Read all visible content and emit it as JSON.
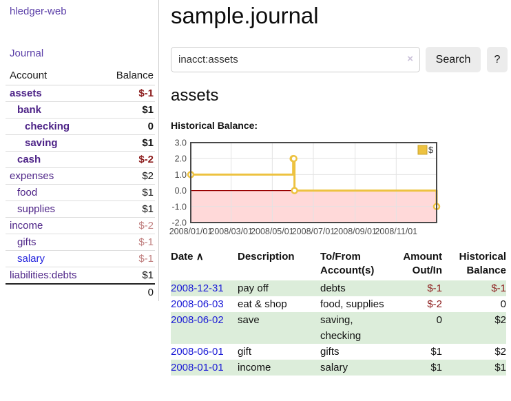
{
  "app": {
    "brand": "hledger-web",
    "nav": {
      "journal": "Journal"
    }
  },
  "sidebar": {
    "table": {
      "headers": {
        "account": "Account",
        "balance": "Balance"
      },
      "rows": [
        {
          "account": "assets",
          "balance": "$-1",
          "level": 0,
          "bold": true
        },
        {
          "account": "bank",
          "balance": "$1",
          "level": 1,
          "bold": true
        },
        {
          "account": "checking",
          "balance": "0",
          "level": 2,
          "bold": true
        },
        {
          "account": "saving",
          "balance": "$1",
          "level": 2,
          "bold": true
        },
        {
          "account": "cash",
          "balance": "$-2",
          "level": 1,
          "bold": true
        },
        {
          "account": "expenses",
          "balance": "$2",
          "level": 0,
          "bold": false
        },
        {
          "account": "food",
          "balance": "$1",
          "level": 1,
          "bold": false
        },
        {
          "account": "supplies",
          "balance": "$1",
          "level": 1,
          "bold": false
        },
        {
          "account": "income",
          "balance": "$-2",
          "level": 0,
          "bold": false
        },
        {
          "account": "gifts",
          "balance": "$-1",
          "level": 1,
          "bold": false
        },
        {
          "account": "salary",
          "balance": "$-1",
          "level": 1,
          "bold": false,
          "fresh": true
        },
        {
          "account": "liabilities:debts",
          "balance": "$1",
          "level": 0,
          "bold": false
        }
      ],
      "total": "0"
    }
  },
  "main": {
    "title": "sample.journal",
    "search": {
      "value": "inacct:assets",
      "clear_icon": "×",
      "button": "Search",
      "help": "?"
    },
    "account_heading": "assets",
    "chart_heading": "Historical Balance:"
  },
  "chart_data": {
    "type": "line",
    "subtype": "step-with-markers",
    "title": "Historical Balance:",
    "legend": {
      "position": "top-right"
    },
    "series": [
      {
        "name": "$",
        "points": [
          [
            "2008-01-01",
            1
          ],
          [
            "2008-06-01",
            2
          ],
          [
            "2008-06-02",
            2
          ],
          [
            "2008-06-03",
            0
          ],
          [
            "2008-12-31",
            -1
          ]
        ]
      }
    ],
    "x_range": [
      "2008-01-01",
      "2008-12-31"
    ],
    "ylim": [
      -2.0,
      3.0
    ],
    "yticks": [
      3.0,
      2.0,
      1.0,
      0.0,
      -1.0,
      -2.0
    ],
    "xticks": [
      {
        "date": "2008-01-01",
        "label": "2008/01/01"
      },
      {
        "date": "2008-03-01",
        "label": "2008/03/01"
      },
      {
        "date": "2008-05-01",
        "label": "2008/05/01"
      },
      {
        "date": "2008-07-01",
        "label": "2008/07/01"
      },
      {
        "date": "2008-09-01",
        "label": "2008/09/01"
      },
      {
        "date": "2008-11-01",
        "label": "2008/11/01"
      }
    ],
    "grid": true,
    "colors": {
      "line": "#EDC240",
      "legend_swatch_border": "#c9a32d",
      "negative_zone_fill": "#ffd9d9",
      "zero_line": "#990000",
      "plot_border": "#484848",
      "gridline": "#e3e3e3",
      "tick_text": "#4a4a4a"
    }
  },
  "register": {
    "sort_icon": "∧",
    "headers": [
      {
        "l1": "Date"
      },
      {
        "l1": "Description"
      },
      {
        "l1": "To/From",
        "l2": "Account(s)"
      },
      {
        "l1": "Amount",
        "l2": "Out/In"
      },
      {
        "l1": "Historical",
        "l2": "Balance"
      }
    ],
    "rows": [
      {
        "date": "2008-12-31",
        "description": "pay off",
        "to_from": "debts",
        "amount": "$-1",
        "balance": "$-1"
      },
      {
        "date": "2008-06-03",
        "description": "eat & shop",
        "to_from": "food, supplies",
        "amount": "$-2",
        "balance": "0"
      },
      {
        "date": "2008-06-02",
        "description": "save",
        "to_from": "saving, checking",
        "amount": "0",
        "balance": "$2"
      },
      {
        "date": "2008-06-01",
        "description": "gift",
        "to_from": "gifts",
        "amount": "$1",
        "balance": "$2"
      },
      {
        "date": "2008-01-01",
        "description": "income",
        "to_from": "salary",
        "amount": "$1",
        "balance": "$1"
      }
    ]
  },
  "colors": {
    "link_purple": "#5b3fa8",
    "account_purple": "#4d2387",
    "unvisited_blue": "#2222dd",
    "date_link_blue": "#1a1ad6",
    "negative_strong": "#8b1a1a",
    "negative_soft": "#c07f7f",
    "row_green": "#dcedda"
  }
}
